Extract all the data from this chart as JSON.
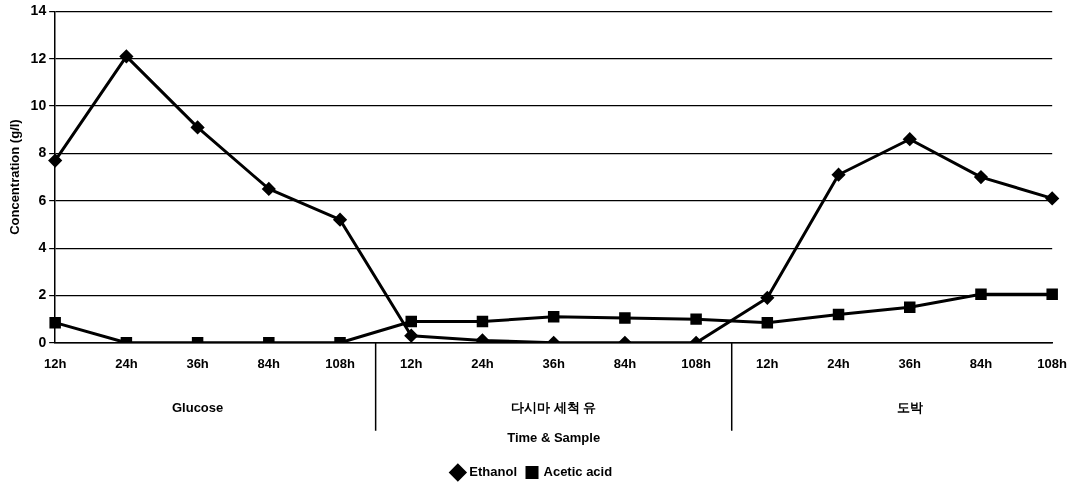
{
  "chart_data": {
    "type": "line",
    "xlabel": "Time & Sample",
    "ylabel": "Concentration (g/l)",
    "categories": [
      "12h",
      "24h",
      "36h",
      "84h",
      "108h",
      "12h",
      "24h",
      "36h",
      "84h",
      "108h",
      "12h",
      "24h",
      "36h",
      "84h",
      "108h"
    ],
    "annotations": [
      "Glucose",
      "다시마 세척 유",
      "도박"
    ],
    "series": [
      {
        "name": "Ethanol",
        "color": "#000000",
        "marker": "diamond",
        "values": [
          7.7,
          12.1,
          9.1,
          6.5,
          5.2,
          0.3,
          0.1,
          0,
          0,
          0,
          1.9,
          7.1,
          8.6,
          7.0,
          6.1
        ]
      },
      {
        "name": "Acetic acid",
        "color": "#000000",
        "marker": "square",
        "values": [
          0.85,
          0,
          0,
          0,
          0,
          0.9,
          0.9,
          1.1,
          1.05,
          1.0,
          0.85,
          1.2,
          1.5,
          2.05,
          2.05
        ]
      }
    ],
    "ylim": [
      0,
      14
    ],
    "yticks": [
      0,
      2,
      4,
      6,
      8,
      10,
      12,
      14
    ],
    "grid": "y",
    "legend": "bottom",
    "line_style": "solid"
  }
}
